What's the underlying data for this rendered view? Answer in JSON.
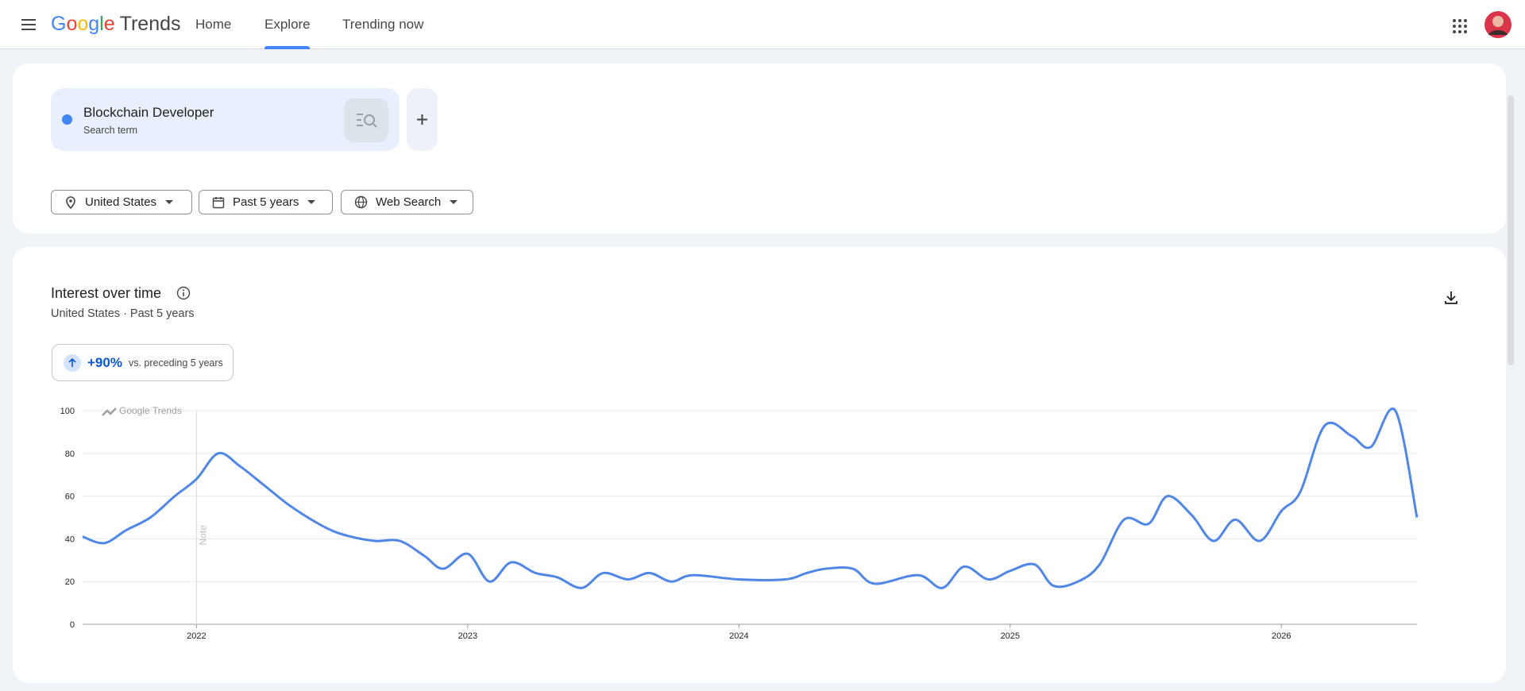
{
  "header": {
    "logo": "Google",
    "product": "Trends",
    "nav": [
      "Home",
      "Explore",
      "Trending now"
    ]
  },
  "search": {
    "term": "Blockchain Developer",
    "kind": "Search term"
  },
  "filters": [
    "United States",
    "Past 5 years",
    "Web Search"
  ],
  "badge": {
    "change": "+90%",
    "text": "vs. preceding 5 years"
  },
  "watermark": "Google Trends",
  "note": "Note",
  "chart_data": {
    "type": "line",
    "title": "Interest over time",
    "subtitle": "United States · Past 5 years",
    "x": [
      2021.58,
      2021.66,
      2021.74,
      2021.83,
      2021.92,
      2022.0,
      2022.08,
      2022.16,
      2022.25,
      2022.35,
      2022.48,
      2022.57,
      2022.66,
      2022.75,
      2022.84,
      2022.91,
      2023.0,
      2023.08,
      2023.16,
      2023.25,
      2023.33,
      2023.42,
      2023.5,
      2023.59,
      2023.67,
      2023.75,
      2023.83,
      2024.0,
      2024.17,
      2024.25,
      2024.32,
      2024.42,
      2024.5,
      2024.66,
      2024.75,
      2024.83,
      2024.92,
      2025.0,
      2025.09,
      2025.16,
      2025.25,
      2025.33,
      2025.42,
      2025.51,
      2025.58,
      2025.67,
      2025.75,
      2025.83,
      2025.92,
      2026.0,
      2026.07,
      2026.16,
      2026.26,
      2026.33,
      2026.42,
      2026.5
    ],
    "series": [
      {
        "name": "Blockchain Developer",
        "color": "#5087e6",
        "values": [
          41,
          38,
          44,
          50,
          60,
          68,
          80,
          74,
          65,
          55,
          45,
          41,
          39,
          39,
          32,
          26,
          33,
          20,
          29,
          24,
          22,
          17,
          24,
          21,
          24,
          20,
          23,
          21,
          21,
          24,
          26,
          26,
          19,
          23,
          17,
          27,
          21,
          25,
          28,
          18,
          20,
          28,
          49,
          47,
          60,
          51,
          39,
          49,
          39,
          53,
          62,
          93,
          88,
          83,
          100,
          50
        ]
      }
    ],
    "xlim": [
      2021.58,
      2026.5
    ],
    "xticks": [
      2022,
      2023,
      2024,
      2025,
      2026
    ],
    "ylim": [
      0,
      100
    ],
    "yticks": [
      0,
      20,
      40,
      60,
      80,
      100
    ],
    "grid": true
  }
}
